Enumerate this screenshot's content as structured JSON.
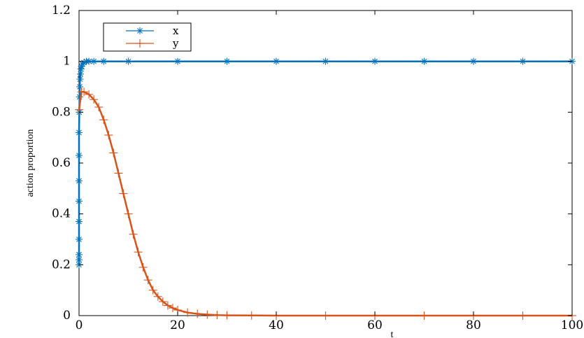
{
  "chart_data": {
    "type": "scatter",
    "title": "",
    "xlabel": "t",
    "ylabel": "action proportion",
    "xlim": [
      0,
      100
    ],
    "ylim": [
      0,
      1.2
    ],
    "x_ticks": [
      "0",
      "20",
      "40",
      "60",
      "80",
      "100"
    ],
    "y_ticks": [
      "0",
      "0.2",
      "0.4",
      "0.6",
      "0.8",
      "1",
      "1.2"
    ],
    "grid": false,
    "legend_position": "top-left",
    "series": [
      {
        "name": "x",
        "marker": "asterisk",
        "color": "#0072BD",
        "x": [
          0,
          0,
          0,
          0,
          0,
          0,
          0,
          0,
          0,
          0.05,
          0.1,
          0.15,
          0.2,
          0.3,
          0.4,
          0.5,
          0.7,
          1,
          1.5,
          2,
          3,
          5,
          10,
          20,
          30,
          40,
          50,
          60,
          70,
          80,
          90,
          100
        ],
        "y": [
          0.2,
          0.22,
          0.24,
          0.3,
          0.37,
          0.45,
          0.53,
          0.63,
          0.72,
          0.8,
          0.86,
          0.9,
          0.93,
          0.95,
          0.97,
          0.98,
          0.99,
          0.995,
          1,
          1,
          1,
          1,
          1,
          1,
          1,
          1,
          1,
          1,
          1,
          1,
          1,
          1
        ]
      },
      {
        "name": "y",
        "marker": "plus",
        "color": "#D95319",
        "x": [
          0,
          0.5,
          1,
          2,
          3,
          4,
          5,
          6,
          7,
          8,
          9,
          10,
          11,
          12,
          13,
          14,
          15,
          16,
          17,
          18,
          19,
          20,
          22,
          24,
          26,
          28,
          30,
          35,
          40,
          50,
          60,
          70,
          80,
          90,
          100
        ],
        "y": [
          0.81,
          0.88,
          0.88,
          0.87,
          0.85,
          0.82,
          0.77,
          0.71,
          0.64,
          0.56,
          0.48,
          0.4,
          0.32,
          0.25,
          0.19,
          0.14,
          0.1,
          0.075,
          0.055,
          0.04,
          0.03,
          0.022,
          0.012,
          0.007,
          0.004,
          0.002,
          0.001,
          0.0005,
          0,
          0,
          0,
          0,
          0,
          0,
          0
        ]
      }
    ]
  }
}
